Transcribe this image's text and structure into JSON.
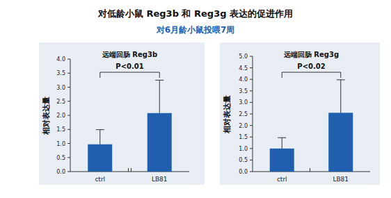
{
  "title": "对低龄小鼠 Reg3b 和 Reg3g 表达的促进作用",
  "subtitle": "对6月龄小鼠投喂7周",
  "chart_data": [
    {
      "type": "bar",
      "title": "远端回肠 Reg3b",
      "y_label": "相对表达量",
      "categories": [
        "ctrl",
        "LB81"
      ],
      "values": [
        0.97,
        2.08
      ],
      "errors": [
        0.52,
        1.17
      ],
      "color": "#1f5fae",
      "annotation": "P<0.01",
      "ylim": [
        0,
        4.0
      ],
      "yticks": [
        {
          "value": 0,
          "label": "0.0"
        },
        {
          "value": 0.5,
          "label": "0.5"
        },
        {
          "value": 1,
          "label": "1.0"
        },
        {
          "value": 1.5,
          "label": "1.5"
        },
        {
          "value": 2,
          "label": "2.0"
        },
        {
          "value": 2.5,
          "label": "2.5"
        },
        {
          "value": 3,
          "label": "3.0"
        },
        {
          "value": 3.5,
          "label": "3.5"
        },
        {
          "value": 4,
          "label": "4.0"
        }
      ],
      "grid": false
    },
    {
      "type": "bar",
      "title": "远端回肠 Reg3g",
      "y_label": "相对表达量",
      "categories": [
        "ctrl",
        "LB81"
      ],
      "values": [
        1.0,
        2.55
      ],
      "errors": [
        0.47,
        1.43
      ],
      "color": "#1f5fae",
      "annotation": "P<0.02",
      "ylim": [
        0,
        5.0
      ],
      "yticks": [
        {
          "value": 0,
          "label": "0.0"
        },
        {
          "value": 0.5,
          "label": "0.5"
        },
        {
          "value": 1,
          "label": "1.0"
        },
        {
          "value": 1.5,
          "label": "1.5"
        },
        {
          "value": 2,
          "label": "2.0"
        },
        {
          "value": 2.5,
          "label": "2.5"
        },
        {
          "value": 3,
          "label": "3.0"
        },
        {
          "value": 3.5,
          "label": "3.5"
        },
        {
          "value": 4,
          "label": "4.0"
        },
        {
          "value": 4.5,
          "label": "4.5"
        },
        {
          "value": 5,
          "label": "5.0"
        }
      ],
      "grid": false
    }
  ]
}
